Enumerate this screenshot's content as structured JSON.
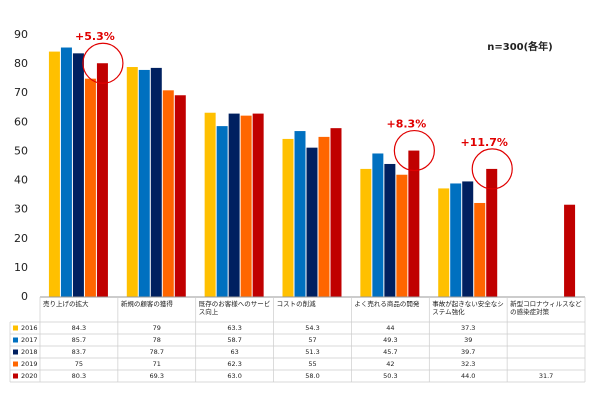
{
  "chart_data": {
    "type": "bar",
    "note": "n=300(各年)",
    "categories": [
      "売り上げの拡大",
      "新規の顧客の獲得",
      "既存のお客様へのサービス向上",
      "コストの削減",
      "よく売れる商品の開発",
      "事故が起きない安全なシステム強化",
      "新型コロナウィルスなどの感染症対策"
    ],
    "series": [
      {
        "name": "2016",
        "color": "#ffc000",
        "values": [
          84.3,
          79,
          63.3,
          54.3,
          44,
          37.3,
          null
        ]
      },
      {
        "name": "2017",
        "color": "#0070c0",
        "values": [
          85.7,
          78,
          58.7,
          57,
          49.3,
          39,
          null
        ]
      },
      {
        "name": "2018",
        "color": "#002060",
        "values": [
          83.7,
          78.7,
          63,
          51.3,
          45.7,
          39.7,
          null
        ]
      },
      {
        "name": "2019",
        "color": "#ff6600",
        "values": [
          75,
          71,
          62.3,
          55,
          42,
          32.3,
          null
        ]
      },
      {
        "name": "2020",
        "color": "#c00000",
        "values": [
          80.3,
          69.3,
          63.0,
          58.0,
          50.3,
          44.0,
          31.7
        ],
        "value_labels": [
          "80.3",
          "69.3",
          "63.0",
          "58.0",
          "50.3",
          "44.0",
          "31.7"
        ]
      }
    ],
    "annotations": [
      "+5.3%",
      "+8.3%",
      "+11.7%"
    ],
    "ylim": [
      0,
      90
    ],
    "yticks": [
      0,
      10,
      20,
      30,
      40,
      50,
      60,
      70,
      80,
      90
    ],
    "grid": false
  }
}
